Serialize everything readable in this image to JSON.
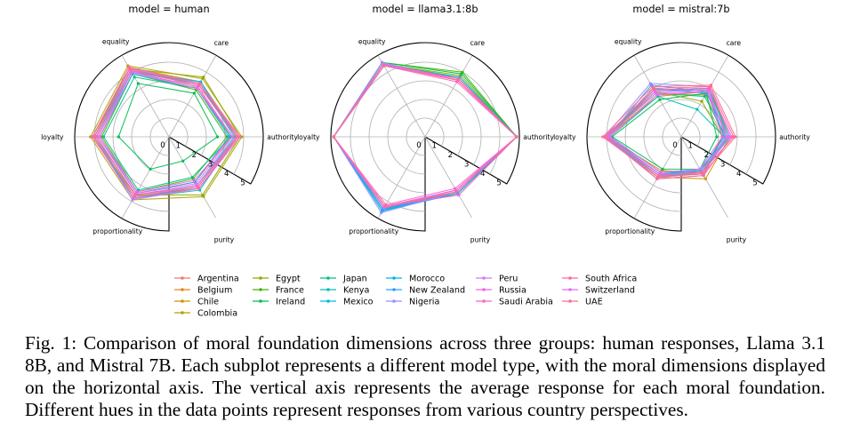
{
  "axes": [
    "authority",
    "care",
    "equality",
    "loyalty",
    "proportionality",
    "purity"
  ],
  "radial_ticks": [
    "0",
    "1",
    "2",
    "3",
    "4",
    "5"
  ],
  "caption": "Fig. 1: Comparison of moral foundation dimensions across three groups: human responses, Llama 3.1 8B, and Mistral 7B. Each subplot represents a different model type, with the moral dimensions displayed on the horizontal axis. The vertical axis represents the average response for each moral foundation. Different hues in the data points represent responses from various country perspectives.",
  "countries": [
    {
      "name": "Argentina",
      "color": "#f8766d"
    },
    {
      "name": "Belgium",
      "color": "#e7851e"
    },
    {
      "name": "Chile",
      "color": "#d09400"
    },
    {
      "name": "Colombia",
      "color": "#b2a100"
    },
    {
      "name": "Egypt",
      "color": "#89ac00"
    },
    {
      "name": "France",
      "color": "#45b500"
    },
    {
      "name": "Ireland",
      "color": "#00bc51"
    },
    {
      "name": "Japan",
      "color": "#00c087"
    },
    {
      "name": "Kenya",
      "color": "#00c0b2"
    },
    {
      "name": "Mexico",
      "color": "#00bcd6"
    },
    {
      "name": "Morocco",
      "color": "#00b3f2"
    },
    {
      "name": "New Zealand",
      "color": "#29a3ff"
    },
    {
      "name": "Nigeria",
      "color": "#9c8dff"
    },
    {
      "name": "Peru",
      "color": "#d277ff"
    },
    {
      "name": "Russia",
      "color": "#f166e8"
    },
    {
      "name": "Saudi Arabia",
      "color": "#ff61c7"
    },
    {
      "name": "South Africa",
      "color": "#ff689f"
    },
    {
      "name": "Switzerland",
      "color": "#e76bf3"
    },
    {
      "name": "UAE",
      "color": "#ff6c91"
    }
  ],
  "chart_data": [
    {
      "type": "radar",
      "title": "model = human",
      "rlim": [
        0,
        5
      ],
      "axes": [
        "authority",
        "care",
        "equality",
        "loyalty",
        "proportionality",
        "purity"
      ],
      "series": [
        {
          "name": "Argentina",
          "values": [
            3.6,
            3.2,
            4.1,
            3.9,
            3.6,
            3.0
          ]
        },
        {
          "name": "Belgium",
          "values": [
            3.3,
            3.1,
            4.0,
            3.8,
            3.5,
            2.8
          ]
        },
        {
          "name": "Chile",
          "values": [
            3.7,
            3.4,
            4.3,
            4.0,
            3.7,
            3.2
          ]
        },
        {
          "name": "Colombia",
          "values": [
            3.9,
            3.6,
            4.4,
            4.2,
            3.9,
            3.7
          ]
        },
        {
          "name": "Egypt",
          "values": [
            3.8,
            3.7,
            4.2,
            4.1,
            3.6,
            3.6
          ]
        },
        {
          "name": "France",
          "values": [
            3.1,
            2.9,
            3.9,
            3.6,
            3.4,
            2.6
          ]
        },
        {
          "name": "Ireland",
          "values": [
            2.6,
            2.7,
            3.3,
            2.7,
            2.0,
            1.5
          ]
        },
        {
          "name": "Japan",
          "values": [
            3.3,
            3.0,
            3.7,
            3.5,
            3.3,
            2.5
          ]
        },
        {
          "name": "Kenya",
          "values": [
            3.6,
            3.3,
            4.1,
            3.9,
            3.8,
            3.3
          ]
        },
        {
          "name": "Mexico",
          "values": [
            3.5,
            3.3,
            4.0,
            3.9,
            3.6,
            3.0
          ]
        },
        {
          "name": "Morocco",
          "values": [
            3.6,
            3.4,
            4.1,
            4.0,
            3.8,
            3.1
          ]
        },
        {
          "name": "New Zealand",
          "values": [
            3.2,
            3.0,
            3.9,
            3.7,
            3.5,
            2.8
          ]
        },
        {
          "name": "Nigeria",
          "values": [
            3.7,
            3.3,
            4.2,
            4.0,
            3.9,
            3.2
          ]
        },
        {
          "name": "Peru",
          "values": [
            3.6,
            3.2,
            4.1,
            3.9,
            3.6,
            3.0
          ]
        },
        {
          "name": "Russia",
          "values": [
            3.4,
            3.1,
            4.0,
            3.7,
            3.4,
            2.7
          ]
        },
        {
          "name": "Saudi Arabia",
          "values": [
            3.8,
            3.3,
            4.3,
            4.1,
            3.8,
            3.2
          ]
        },
        {
          "name": "South Africa",
          "values": [
            3.6,
            3.2,
            4.1,
            3.9,
            3.6,
            3.1
          ]
        },
        {
          "name": "Switzerland",
          "values": [
            3.4,
            3.0,
            4.0,
            3.8,
            3.5,
            2.9
          ]
        },
        {
          "name": "UAE",
          "values": [
            3.7,
            3.3,
            4.2,
            4.0,
            3.7,
            3.1
          ]
        }
      ]
    },
    {
      "type": "radar",
      "title": "model = llama3.1:8b",
      "rlim": [
        0,
        5
      ],
      "axes": [
        "authority",
        "care",
        "equality",
        "loyalty",
        "proportionality",
        "purity"
      ],
      "series": [
        {
          "name": "Argentina",
          "values": [
            4.9,
            3.6,
            4.5,
            4.9,
            4.4,
            3.4
          ]
        },
        {
          "name": "Belgium",
          "values": [
            4.9,
            3.5,
            4.5,
            4.9,
            4.4,
            3.5
          ]
        },
        {
          "name": "Chile",
          "values": [
            4.9,
            3.7,
            4.4,
            4.9,
            4.5,
            3.3
          ]
        },
        {
          "name": "Colombia",
          "values": [
            4.9,
            3.6,
            4.5,
            4.9,
            4.4,
            3.4
          ]
        },
        {
          "name": "Egypt",
          "values": [
            4.9,
            3.8,
            4.5,
            4.9,
            4.3,
            3.6
          ]
        },
        {
          "name": "France",
          "values": [
            4.9,
            4.0,
            4.6,
            4.9,
            4.4,
            3.5
          ]
        },
        {
          "name": "Ireland",
          "values": [
            4.9,
            3.9,
            4.6,
            4.9,
            4.5,
            3.4
          ]
        },
        {
          "name": "Japan",
          "values": [
            4.9,
            3.7,
            4.5,
            4.9,
            4.5,
            3.5
          ]
        },
        {
          "name": "Kenya",
          "values": [
            4.9,
            3.6,
            4.5,
            4.9,
            4.6,
            3.4
          ]
        },
        {
          "name": "Mexico",
          "values": [
            4.9,
            3.7,
            4.4,
            4.9,
            4.5,
            3.4
          ]
        },
        {
          "name": "Morocco",
          "values": [
            4.9,
            3.5,
            4.5,
            4.9,
            4.6,
            3.5
          ]
        },
        {
          "name": "New Zealand",
          "values": [
            4.9,
            3.6,
            4.5,
            4.9,
            4.5,
            3.5
          ]
        },
        {
          "name": "Nigeria",
          "values": [
            4.9,
            3.5,
            4.6,
            4.9,
            4.7,
            3.4
          ]
        },
        {
          "name": "Peru",
          "values": [
            4.9,
            3.6,
            4.5,
            4.9,
            4.3,
            3.3
          ]
        },
        {
          "name": "Russia",
          "values": [
            4.9,
            3.5,
            4.5,
            4.9,
            4.3,
            3.6
          ]
        },
        {
          "name": "Saudi Arabia",
          "values": [
            4.9,
            3.4,
            4.4,
            4.9,
            4.2,
            3.2
          ]
        },
        {
          "name": "South Africa",
          "values": [
            4.9,
            3.6,
            4.5,
            4.9,
            4.4,
            3.4
          ]
        },
        {
          "name": "Switzerland",
          "values": [
            4.9,
            3.5,
            4.5,
            4.9,
            4.4,
            3.3
          ]
        },
        {
          "name": "UAE",
          "values": [
            4.9,
            3.5,
            4.4,
            4.9,
            4.3,
            3.4
          ]
        }
      ]
    },
    {
      "type": "radar",
      "title": "model = mistral:7b",
      "rlim": [
        0,
        5
      ],
      "axes": [
        "authority",
        "care",
        "equality",
        "loyalty",
        "proportionality",
        "purity"
      ],
      "series": [
        {
          "name": "Argentina",
          "values": [
            2.4,
            2.9,
            2.8,
            4.1,
            2.4,
            2.3
          ]
        },
        {
          "name": "Belgium",
          "values": [
            2.2,
            2.8,
            2.5,
            4.0,
            2.1,
            2.2
          ]
        },
        {
          "name": "Chile",
          "values": [
            2.6,
            3.0,
            2.9,
            4.1,
            2.5,
            2.6
          ]
        },
        {
          "name": "Colombia",
          "values": [
            2.3,
            2.6,
            2.6,
            3.9,
            2.3,
            2.1
          ]
        },
        {
          "name": "Egypt",
          "values": [
            2.2,
            2.2,
            2.8,
            4.0,
            2.6,
            2.4
          ]
        },
        {
          "name": "France",
          "values": [
            2.5,
            3.0,
            2.9,
            4.1,
            2.4,
            2.3
          ]
        },
        {
          "name": "Ireland",
          "values": [
            1.9,
            2.7,
            2.3,
            3.7,
            2.0,
            2.0
          ]
        },
        {
          "name": "Japan",
          "values": [
            2.4,
            2.5,
            2.7,
            4.0,
            2.3,
            2.2
          ]
        },
        {
          "name": "Kenya",
          "values": [
            2.3,
            1.7,
            2.5,
            3.8,
            2.2,
            2.1
          ]
        },
        {
          "name": "Mexico",
          "values": [
            2.6,
            2.9,
            2.9,
            4.0,
            2.5,
            2.2
          ]
        },
        {
          "name": "Morocco",
          "values": [
            2.5,
            2.7,
            3.0,
            4.0,
            2.4,
            2.0
          ]
        },
        {
          "name": "New Zealand",
          "values": [
            2.3,
            2.8,
            3.2,
            3.9,
            2.3,
            2.1
          ]
        },
        {
          "name": "Nigeria",
          "values": [
            2.6,
            3.1,
            3.3,
            4.1,
            2.5,
            2.0
          ]
        },
        {
          "name": "Peru",
          "values": [
            2.4,
            2.9,
            2.8,
            3.9,
            2.4,
            2.2
          ]
        },
        {
          "name": "Russia",
          "values": [
            2.5,
            2.8,
            2.7,
            4.0,
            2.3,
            2.3
          ]
        },
        {
          "name": "Saudi Arabia",
          "values": [
            2.7,
            3.0,
            2.9,
            4.1,
            2.6,
            2.4
          ]
        },
        {
          "name": "South Africa",
          "values": [
            2.8,
            3.1,
            3.0,
            4.0,
            2.4,
            2.2
          ]
        },
        {
          "name": "Switzerland",
          "values": [
            2.2,
            2.8,
            2.6,
            3.8,
            2.2,
            2.0
          ]
        },
        {
          "name": "UAE",
          "values": [
            2.9,
            3.2,
            3.1,
            4.2,
            2.5,
            2.3
          ]
        }
      ]
    }
  ]
}
